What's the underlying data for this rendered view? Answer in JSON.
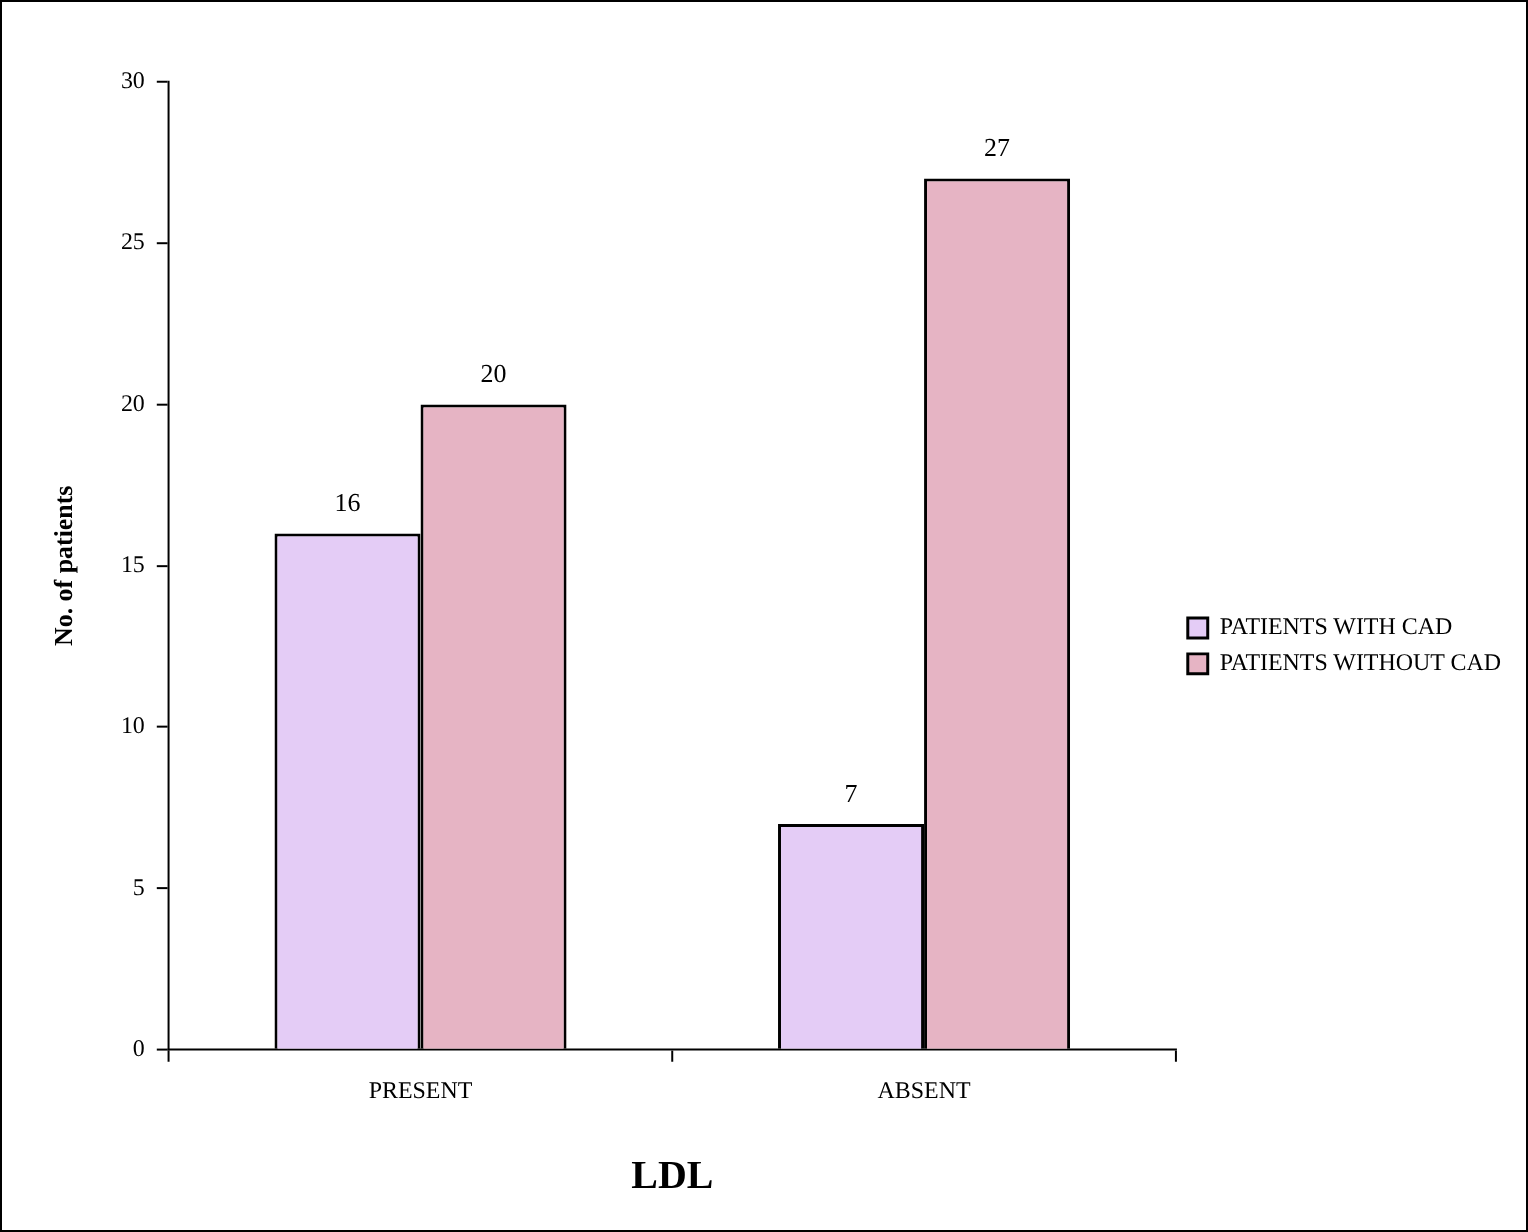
{
  "chart_data": {
    "type": "bar",
    "xlabel": "LDL",
    "ylabel": "No. of patients",
    "categories": [
      "PRESENT",
      "ABSENT"
    ],
    "series": [
      {
        "name": "PATIENTS WITH CAD",
        "color": "#e4ccf6",
        "values": [
          16,
          7
        ]
      },
      {
        "name": "PATIENTS WITHOUT CAD",
        "color": "#e6b4c4",
        "values": [
          20,
          27
        ]
      }
    ],
    "ylim": [
      0,
      30
    ],
    "yticks": [
      0,
      5,
      10,
      15,
      20,
      25,
      30
    ],
    "grid": false,
    "legend": "right",
    "data_labels": true
  }
}
